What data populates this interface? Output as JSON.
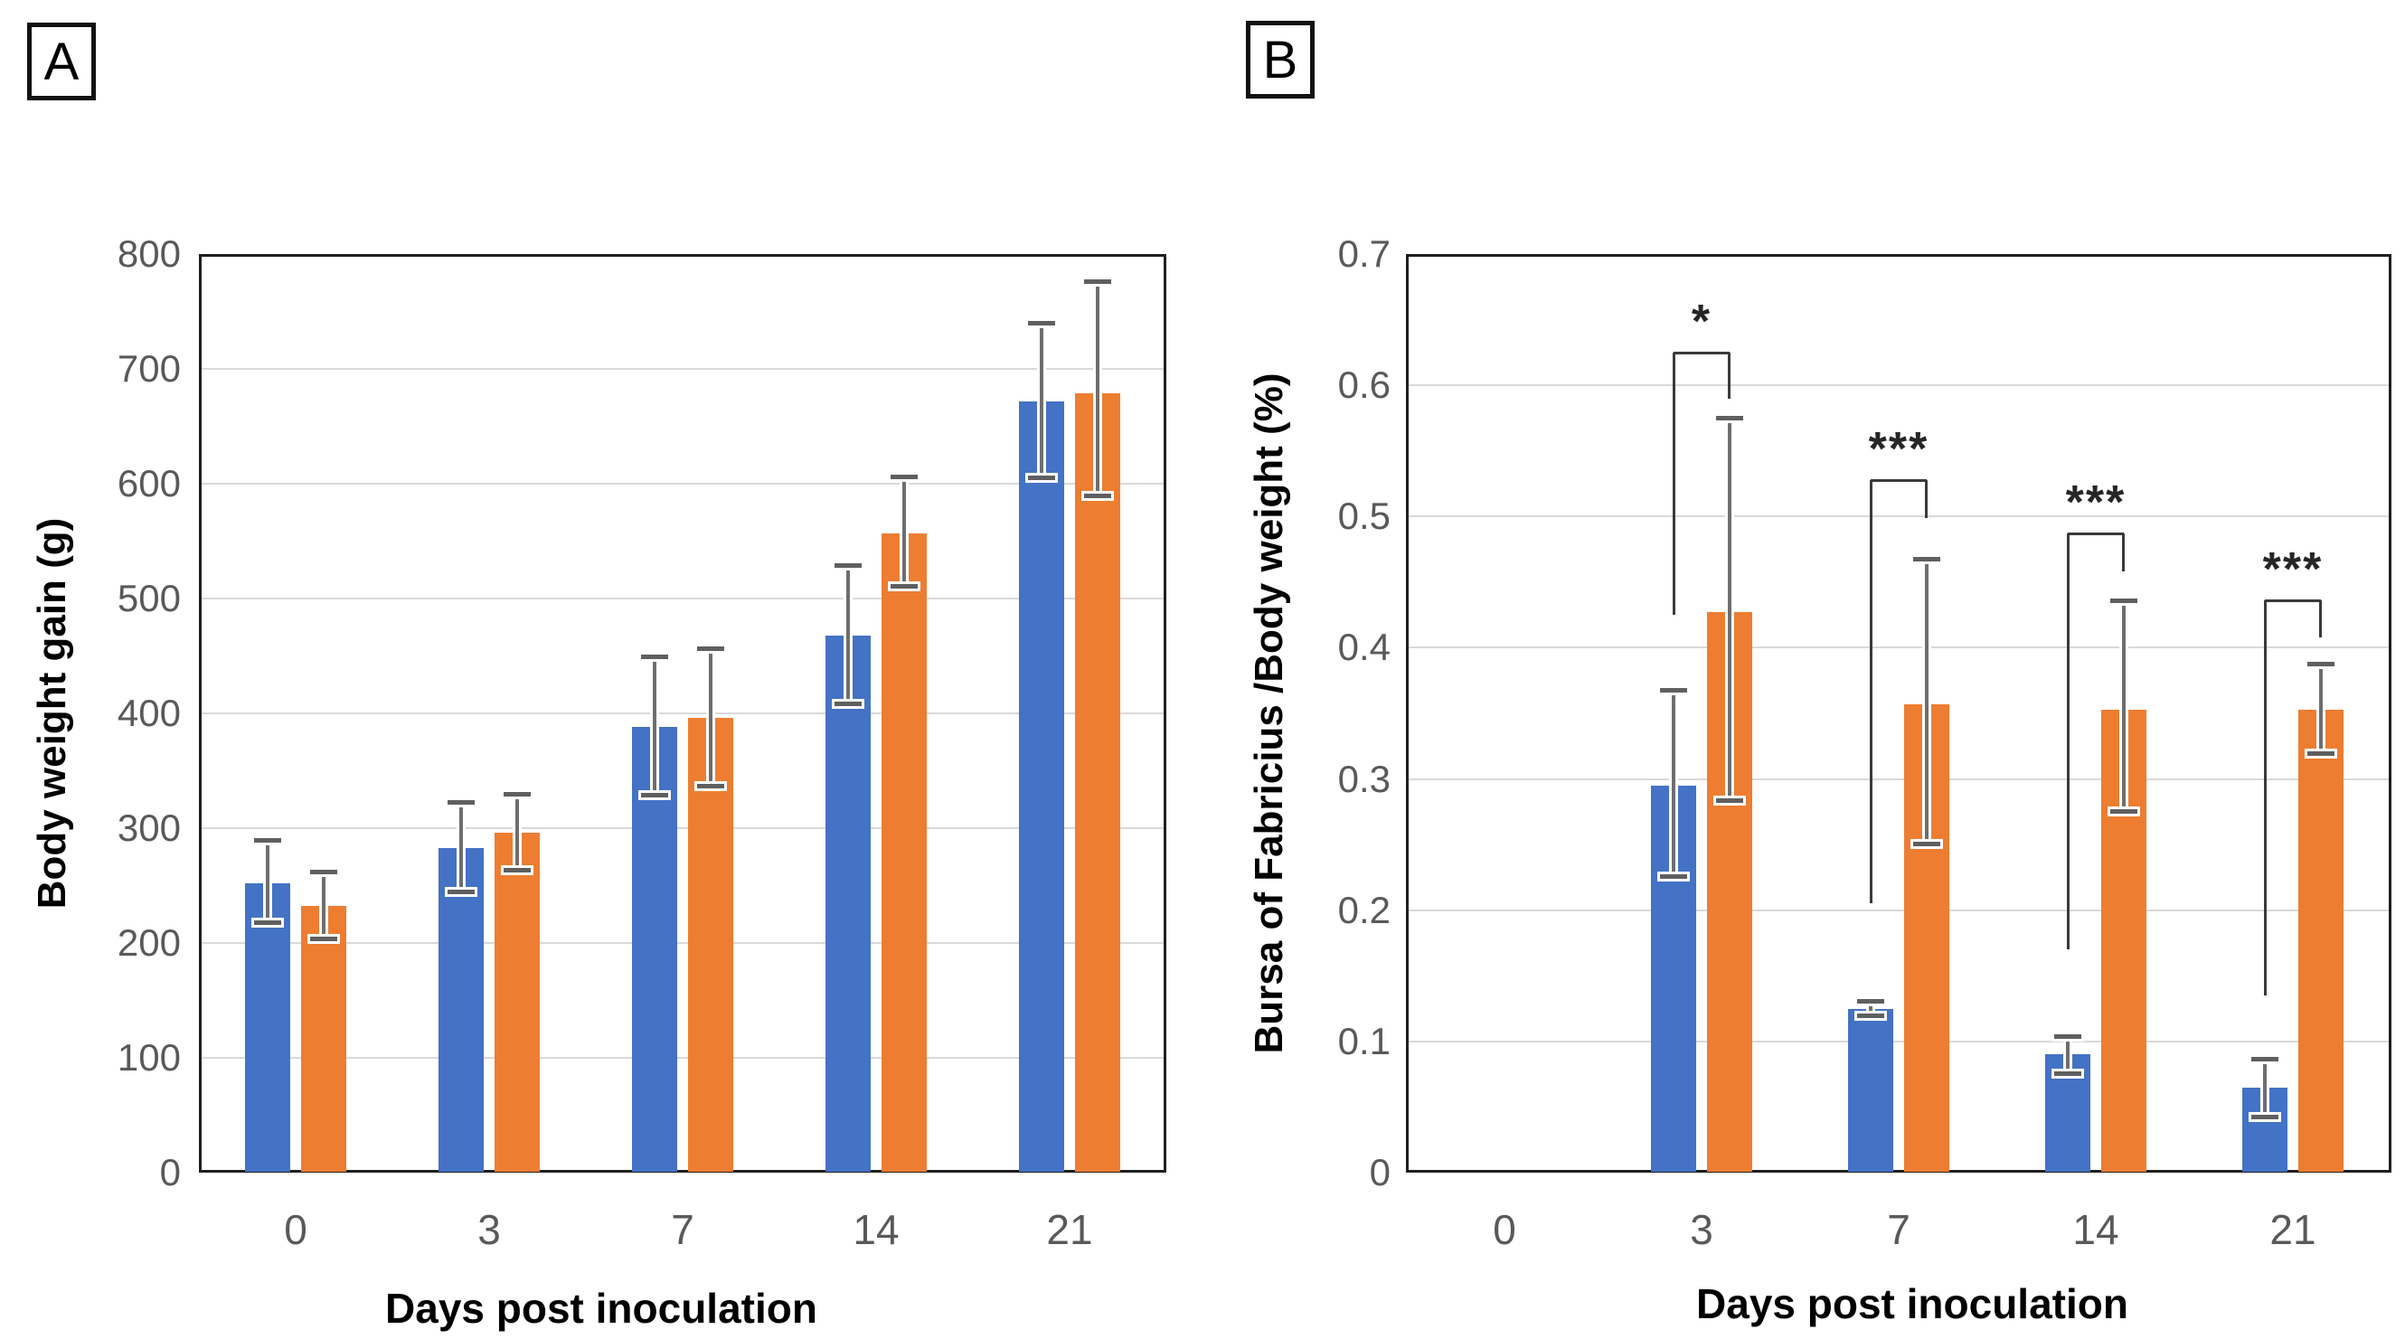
{
  "panels": [
    {
      "label": "A"
    },
    {
      "label": "B"
    }
  ],
  "chart_data": [
    {
      "type": "bar",
      "panel": "A",
      "title": "",
      "ylabel": "Body weight gain (g)",
      "xlabel": "Days post inoculation",
      "categories": [
        "0",
        "3",
        "7",
        "14",
        "21"
      ],
      "ylim": [
        0,
        800
      ],
      "yticks": [
        "0",
        "100",
        "200",
        "300",
        "400",
        "500",
        "600",
        "700",
        "800"
      ],
      "grid": true,
      "legend": "none",
      "series": [
        {
          "name": "blue",
          "color": "#4472C4",
          "values": [
            252,
            283,
            388,
            468,
            672
          ],
          "err_up": [
            38,
            40,
            62,
            61,
            68
          ],
          "err_down": [
            35,
            39,
            60,
            60,
            67
          ]
        },
        {
          "name": "orange",
          "color": "#ED7D31",
          "values": [
            232,
            296,
            396,
            557,
            679
          ],
          "err_up": [
            30,
            34,
            61,
            49,
            97
          ],
          "err_down": [
            29,
            33,
            60,
            47,
            90
          ]
        }
      ]
    },
    {
      "type": "bar",
      "panel": "B",
      "title": "",
      "ylabel": "Bursa of Fabricius /Body weight (%)",
      "xlabel": "Days post inoculation",
      "categories": [
        "0",
        "3",
        "7",
        "14",
        "21"
      ],
      "ylim": [
        0,
        0.7
      ],
      "yticks": [
        "0",
        "0.1",
        "0.2",
        "0.3",
        "0.4",
        "0.5",
        "0.6",
        "0.7"
      ],
      "grid": true,
      "legend": "none",
      "series": [
        {
          "name": "blue",
          "color": "#4472C4",
          "values": [
            0,
            0.295,
            0.125,
            0.09,
            0.065
          ],
          "err_up": [
            0,
            0.073,
            0.006,
            0.014,
            0.022
          ],
          "err_down": [
            0,
            0.07,
            0.006,
            0.015,
            0.023
          ]
        },
        {
          "name": "orange",
          "color": "#ED7D31",
          "values": [
            0,
            0.427,
            0.357,
            0.353,
            0.353
          ],
          "err_up": [
            0,
            0.148,
            0.111,
            0.083,
            0.035
          ],
          "err_down": [
            0,
            0.144,
            0.107,
            0.078,
            0.034
          ]
        }
      ],
      "significance": [
        {
          "category": "3",
          "label": "*",
          "bar_y": 0.625,
          "left_drop_to": 0.425,
          "right_drop_to": 0.59
        },
        {
          "category": "7",
          "label": "***",
          "bar_y": 0.528,
          "left_drop_to": 0.205,
          "right_drop_to": 0.499
        },
        {
          "category": "14",
          "label": "***",
          "bar_y": 0.487,
          "left_drop_to": 0.17,
          "right_drop_to": 0.458
        },
        {
          "category": "21",
          "label": "***",
          "bar_y": 0.436,
          "left_drop_to": 0.135,
          "right_drop_to": 0.408
        }
      ]
    }
  ]
}
